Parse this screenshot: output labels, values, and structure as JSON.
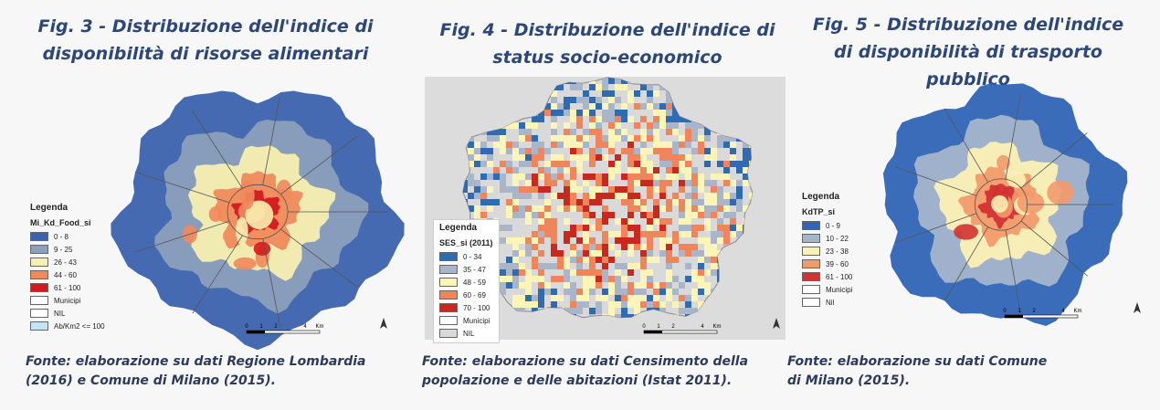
{
  "figures": [
    {
      "title": "Fig. 3 - Distribuzione dell'indice di disponibilità di risorse alimentari",
      "legend_title": "Legenda",
      "legend_subtitle": "Mi_Kd_Food_si",
      "legend_items": [
        {
          "label": "0 - 8",
          "color": "#3b62ad"
        },
        {
          "label": "9 - 25",
          "color": "#8c9fbc"
        },
        {
          "label": "26 - 43",
          "color": "#f8efb0"
        },
        {
          "label": "44 - 60",
          "color": "#ef8a5c"
        },
        {
          "label": "61 - 100",
          "color": "#d3191c"
        },
        {
          "label": "Municipi",
          "color": "#ffffff"
        },
        {
          "label": "NIL",
          "color": "#ffffff"
        },
        {
          "label": "Ab/Km2 <= 100",
          "color": "#bfe6f2"
        }
      ],
      "scale_labels": [
        "0",
        "1",
        "2",
        "4",
        "Km"
      ],
      "source": "Fonte: elaborazione su dati Regione Lombardia (2016) e Comune di Milano (2015)."
    },
    {
      "title": "Fig. 4 - Distribuzione dell'indice di status socio-economico",
      "legend_title": "Legenda",
      "legend_subtitle": "SES_si (2011)",
      "legend_items": [
        {
          "label": "0 - 34",
          "color": "#2f6bb0"
        },
        {
          "label": "35 - 47",
          "color": "#a9b5c9"
        },
        {
          "label": "48 - 59",
          "color": "#fdf4b8"
        },
        {
          "label": "60 - 69",
          "color": "#f0845b"
        },
        {
          "label": "70 - 100",
          "color": "#c8281e"
        },
        {
          "label": "Municipi",
          "color": "#ffffff"
        },
        {
          "label": "NIL",
          "color": "#d9d9d9"
        }
      ],
      "scale_labels": [
        "0",
        "1",
        "2",
        "4",
        "Km"
      ],
      "source": "Fonte: elaborazione su dati Censimento della popolazione e delle abitazioni (Istat 2011)."
    },
    {
      "title": "Fig. 5 - Distribuzione dell'indice di disponibilità di trasporto pubblico",
      "legend_title": "Legenda",
      "legend_subtitle": "KdTP_si",
      "legend_items": [
        {
          "label": "0 - 9",
          "color": "#3064b5"
        },
        {
          "label": "10 - 22",
          "color": "#a5b5cc"
        },
        {
          "label": "23 - 38",
          "color": "#fbf1b4"
        },
        {
          "label": "39 - 60",
          "color": "#f39a6b"
        },
        {
          "label": "61 - 100",
          "color": "#d23131"
        },
        {
          "label": "Municipi",
          "color": "#ffffff"
        },
        {
          "label": "Nil",
          "color": "#ffffff"
        }
      ],
      "scale_labels": [
        "0",
        "1",
        "2",
        "4",
        "Km"
      ],
      "source": "Fonte: elaborazione su dati Comune di Milano (2015)."
    }
  ]
}
